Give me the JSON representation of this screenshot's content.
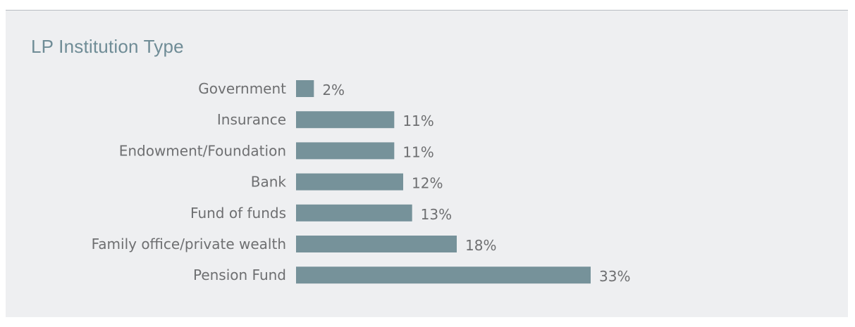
{
  "chart_data": {
    "type": "bar",
    "orientation": "horizontal",
    "title": "LP Institution Type",
    "categories": [
      "Government",
      "Insurance",
      "Endowment/Foundation",
      "Bank",
      "Fund of funds",
      "Family office/private wealth",
      "Pension Fund"
    ],
    "values": [
      2,
      11,
      11,
      12,
      13,
      18,
      33
    ],
    "value_labels": [
      "2%",
      "11%",
      "11%",
      "12%",
      "13%",
      "18%",
      "33%"
    ],
    "unit": "%",
    "xlim": [
      0,
      33
    ],
    "bar_color": "#76929a",
    "grid": false,
    "legend": "none"
  }
}
